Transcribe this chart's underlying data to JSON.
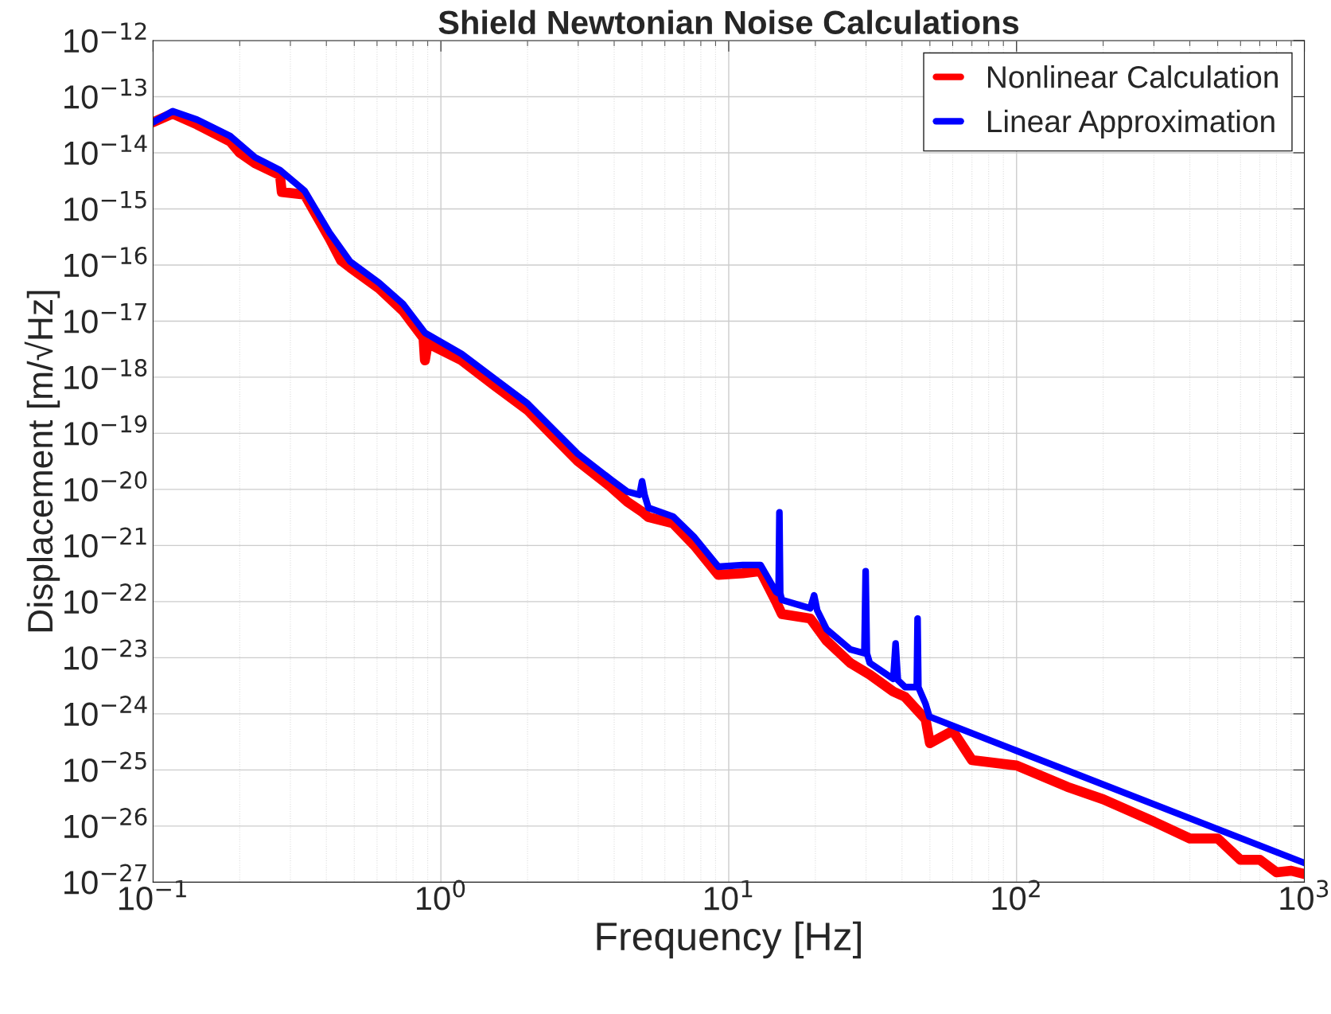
{
  "chart_data": {
    "type": "line",
    "title": "Shield Newtonian Noise Calculations",
    "xlabel": "Frequency [Hz]",
    "ylabel": "Displacement [m/√Hz]",
    "log": "xy",
    "grid": true,
    "legend": "top right",
    "line_style": "solid",
    "marker": "none",
    "xlim": [
      0.1,
      1000
    ],
    "ylim": [
      1e-27,
      1e-12
    ],
    "xticks": [
      {
        "value": 0.1,
        "label": "10$^{−1}$"
      },
      {
        "value": 1,
        "label": "10$^{0}$"
      },
      {
        "value": 10,
        "label": "10$^{1}$"
      },
      {
        "value": 100,
        "label": "10$^{2}$"
      },
      {
        "value": 1000,
        "label": "10$^{3}$"
      }
    ],
    "yticks": [
      {
        "value": 1e-27,
        "label": "10$^{−27}$"
      },
      {
        "value": 1e-26,
        "label": "10$^{−26}$"
      },
      {
        "value": 1e-25,
        "label": "10$^{−25}$"
      },
      {
        "value": 1e-24,
        "label": "10$^{−24}$"
      },
      {
        "value": 1e-23,
        "label": "10$^{−23}$"
      },
      {
        "value": 1e-22,
        "label": "10$^{−22}$"
      },
      {
        "value": 1e-21,
        "label": "10$^{−21}$"
      },
      {
        "value": 1e-20,
        "label": "10$^{−20}$"
      },
      {
        "value": 1e-19,
        "label": "10$^{−19}$"
      },
      {
        "value": 1e-18,
        "label": "10$^{−18}$"
      },
      {
        "value": 1e-17,
        "label": "10$^{−17}$"
      },
      {
        "value": 1e-16,
        "label": "10$^{−16}$"
      },
      {
        "value": 1e-15,
        "label": "10$^{−15}$"
      },
      {
        "value": 1e-14,
        "label": "10$^{−14}$"
      },
      {
        "value": 1e-13,
        "label": "10$^{−13}$"
      },
      {
        "value": 1e-12,
        "label": "10$^{−12}$"
      }
    ],
    "series": [
      {
        "name": "Nonlinear Calculation",
        "color": "#ff0000",
        "x": [
          0.1,
          0.117,
          0.142,
          0.185,
          0.2,
          0.226,
          0.276,
          0.28,
          0.336,
          0.41,
          0.45,
          0.484,
          0.61,
          0.74,
          0.87,
          0.88,
          0.9,
          1.18,
          1.54,
          2.0,
          2.45,
          2.99,
          3.9,
          4.45,
          5.0,
          5.26,
          6.4,
          7.6,
          9.2,
          11.2,
          12.9,
          14.6,
          15.3,
          19.2,
          21.9,
          26.5,
          30.9,
          37.3,
          41,
          48.3,
          50,
          60,
          70,
          100,
          150,
          200,
          300,
          400,
          500,
          600,
          700,
          800,
          900,
          1000
        ],
        "values": [
          3.5e-14,
          5e-14,
          3.2e-14,
          1.6e-14,
          1e-14,
          6.5e-15,
          4e-15,
          2e-15,
          1.8e-15,
          3e-16,
          1.2e-16,
          9e-17,
          3.8e-17,
          1.5e-17,
          5e-18,
          2e-18,
          4e-18,
          2e-18,
          7e-19,
          2.6e-19,
          9e-20,
          3.2e-20,
          1.1e-20,
          6e-21,
          4e-21,
          3.2e-21,
          2.5e-21,
          1e-21,
          3e-22,
          3.2e-22,
          3.5e-22,
          1e-22,
          6e-23,
          5e-23,
          2e-23,
          8e-24,
          5e-24,
          2.5e-24,
          2e-24,
          8e-25,
          3e-25,
          5e-25,
          1.5e-25,
          1.2e-25,
          5e-26,
          3e-26,
          1.2e-26,
          6e-27,
          6e-27,
          2.5e-27,
          2.5e-27,
          1.5e-27,
          1.6e-27,
          1.4e-27
        ]
      },
      {
        "name": "Linear Approximation",
        "color": "#0000ff",
        "x": [
          0.1,
          0.117,
          0.142,
          0.185,
          0.226,
          0.276,
          0.336,
          0.41,
          0.484,
          0.61,
          0.74,
          0.88,
          1.18,
          1.54,
          2.0,
          2.45,
          2.99,
          3.9,
          4.45,
          4.9,
          5.0,
          5.1,
          5.26,
          6.4,
          7.6,
          9.2,
          11.2,
          12.9,
          14.6,
          14.9,
          15.0,
          15.1,
          15.3,
          19.2,
          19.8,
          20.3,
          21.9,
          26.5,
          29.6,
          29.9,
          30.2,
          30.9,
          37.3,
          38,
          38.7,
          41,
          45.0,
          45.3,
          45.6,
          48.3,
          49.8,
          100,
          1000
        ],
        "values": [
          3.5e-14,
          5.5e-14,
          3.9e-14,
          2e-14,
          8.3e-15,
          4.9e-15,
          2.1e-15,
          3.8e-16,
          1.15e-16,
          4.8e-17,
          2e-17,
          6.2e-18,
          2.6e-18,
          9.3e-19,
          3.4e-19,
          1.2e-19,
          4.3e-20,
          1.5e-20,
          9.1e-21,
          8e-21,
          1.4e-20,
          8e-21,
          4.7e-21,
          3.3e-21,
          1.4e-21,
          4.2e-22,
          4.5e-22,
          4.5e-22,
          1.5e-22,
          1.4e-22,
          3.9e-21,
          1.4e-22,
          1.07e-22,
          7.6e-23,
          1.3e-22,
          7e-23,
          3.2e-23,
          1.4e-23,
          1.2e-23,
          3.5e-22,
          1.2e-23,
          8.1e-24,
          4.2e-24,
          1.8e-23,
          4e-24,
          3e-24,
          3e-24,
          5e-23,
          3e-24,
          1.5e-24,
          8.9e-25,
          2.2e-25,
          2.2e-27
        ]
      }
    ]
  }
}
